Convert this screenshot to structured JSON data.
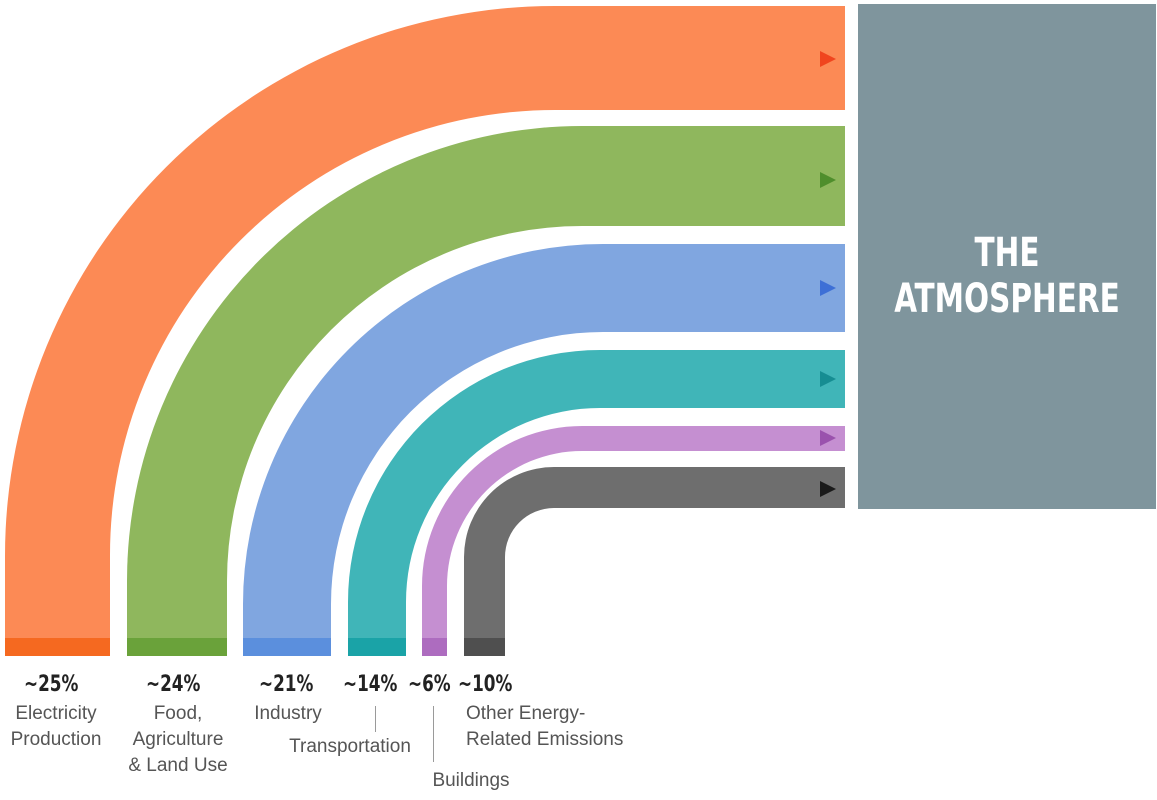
{
  "destination": {
    "label": "THE ATMOSPHERE",
    "color": "#7f959d"
  },
  "flows": [
    {
      "id": "electricity",
      "percent_label": "~25%",
      "name_lines": [
        "Electricity",
        "Production"
      ],
      "share": 25,
      "color": "#fc8a55",
      "base_color": "#f56920",
      "arrow_color": "#f0451e"
    },
    {
      "id": "food",
      "percent_label": "~24%",
      "name_lines": [
        "Food,",
        "Agriculture",
        "& Land Use"
      ],
      "share": 24,
      "color": "#8fb75d",
      "base_color": "#6aa23a",
      "arrow_color": "#4f8e2c"
    },
    {
      "id": "industry",
      "percent_label": "~21%",
      "name_lines": [
        "Industry"
      ],
      "share": 21,
      "color": "#80a6e0",
      "base_color": "#5b8fdd",
      "arrow_color": "#3d6fd6"
    },
    {
      "id": "transportation",
      "percent_label": "~14%",
      "name_lines": [
        "Transportation"
      ],
      "share": 14,
      "color": "#40b5b8",
      "base_color": "#1aa3a7",
      "arrow_color": "#168d92"
    },
    {
      "id": "buildings",
      "percent_label": "~6%",
      "name_lines": [
        "Buildings"
      ],
      "share": 6,
      "color": "#c58fd1",
      "base_color": "#ad6cbf",
      "arrow_color": "#9a52ad"
    },
    {
      "id": "other",
      "percent_label": "~10%",
      "name_lines": [
        "Other Energy-",
        "Related Emissions"
      ],
      "share": 10,
      "color": "#6e6e6e",
      "base_color": "#4f4f4f",
      "arrow_color": "#1a1a1a"
    }
  ]
}
